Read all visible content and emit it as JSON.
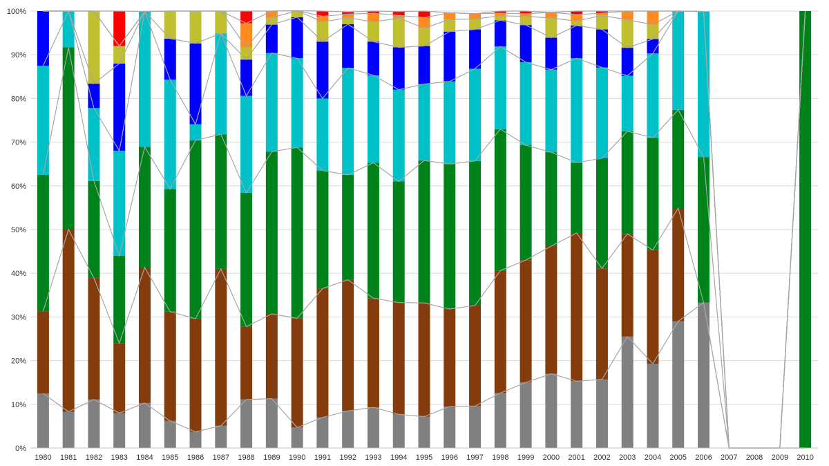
{
  "chart_data": {
    "type": "bar",
    "stacked": "percent",
    "categories": [
      "1980",
      "1981",
      "1982",
      "1983",
      "1984",
      "1985",
      "1986",
      "1987",
      "1988",
      "1989",
      "1990",
      "1991",
      "1992",
      "1993",
      "1994",
      "1995",
      "1996",
      "1997",
      "1998",
      "1999",
      "2000",
      "2001",
      "2002",
      "2003",
      "2004",
      "2005",
      "2006",
      "2007",
      "2008",
      "2009",
      "2010"
    ],
    "ylim": [
      0,
      100
    ],
    "y_ticks": [
      "0%",
      "10%",
      "20%",
      "30%",
      "40%",
      "50%",
      "60%",
      "70%",
      "80%",
      "90%",
      "100%"
    ],
    "grid": true,
    "legend": "none",
    "series_colors": [
      "#808080",
      "#843c0c",
      "#00821a",
      "#00c0c8",
      "#0000ff",
      "#c0bf30",
      "#ff8a20",
      "#ff0000"
    ],
    "series": [
      {
        "values": [
          12.5,
          8.3,
          11.1,
          8.0,
          10.3,
          6.2,
          3.7,
          5.1,
          11.1,
          11.3,
          4.7,
          7.0,
          8.5,
          9.3,
          7.7,
          7.2,
          9.5,
          9.6,
          12.6,
          15.0,
          17.0,
          15.3,
          15.7,
          25.5,
          19.3,
          29.0,
          33.3,
          0,
          0,
          0,
          0
        ]
      },
      {
        "values": [
          18.8,
          41.7,
          27.8,
          16.0,
          31.0,
          25.0,
          25.9,
          35.9,
          16.7,
          19.4,
          25.0,
          29.5,
          30.0,
          25.0,
          25.6,
          26.0,
          22.3,
          23.0,
          28.0,
          28.0,
          29.2,
          33.9,
          25.4,
          23.5,
          26.0,
          25.9,
          0,
          0,
          0,
          0,
          0
        ]
      },
      {
        "values": [
          31.2,
          41.7,
          22.2,
          20.0,
          27.6,
          28.1,
          40.8,
          30.8,
          30.6,
          37.1,
          39.1,
          27.0,
          24.0,
          31.0,
          27.7,
          32.6,
          33.2,
          33.1,
          32.4,
          26.3,
          21.5,
          16.1,
          25.2,
          23.5,
          25.7,
          22.5,
          33.3,
          0,
          0,
          0,
          100
        ]
      },
      {
        "values": [
          25.0,
          8.3,
          16.7,
          24.0,
          31.0,
          25.0,
          3.7,
          23.1,
          22.2,
          22.6,
          20.4,
          16.5,
          24.5,
          20.0,
          21.0,
          17.5,
          18.9,
          21.1,
          18.9,
          19.0,
          18.9,
          23.9,
          20.8,
          12.7,
          19.3,
          22.6,
          33.3,
          0,
          0,
          0,
          0
        ]
      },
      {
        "values": [
          12.5,
          0,
          5.6,
          20.0,
          0,
          9.4,
          18.5,
          0,
          8.3,
          6.5,
          9.4,
          13.0,
          10.0,
          7.7,
          9.7,
          8.7,
          11.4,
          9.0,
          6.0,
          8.5,
          7.3,
          7.5,
          8.7,
          6.4,
          3.3,
          0,
          0,
          0,
          0,
          0,
          0
        ]
      },
      {
        "values": [
          0,
          0,
          16.6,
          4.0,
          0,
          6.3,
          7.4,
          5.1,
          2.8,
          1.6,
          1.5,
          4.5,
          1.5,
          4.5,
          6.7,
          4.1,
          2.8,
          2.4,
          1.0,
          2.0,
          4.5,
          1.0,
          3.2,
          6.4,
          3.3,
          0,
          0,
          0,
          0,
          0,
          0
        ]
      },
      {
        "values": [
          0,
          0,
          0,
          0,
          0,
          0,
          0,
          0,
          5.5,
          1.5,
          0,
          1.3,
          0.8,
          2.0,
          0.6,
          2.4,
          1.5,
          1.2,
          0.6,
          0.6,
          1.3,
          1.5,
          0.5,
          2.0,
          3.1,
          0,
          0,
          0,
          0,
          0,
          0
        ]
      },
      {
        "values": [
          0,
          0,
          0,
          8.0,
          0,
          0,
          0,
          0,
          2.8,
          0,
          0,
          1.2,
          0.5,
          0.5,
          0.9,
          1.5,
          0,
          0,
          0.5,
          0.6,
          0,
          0.8,
          0.5,
          0,
          0,
          0,
          0,
          0,
          0,
          0,
          0
        ]
      }
    ]
  }
}
